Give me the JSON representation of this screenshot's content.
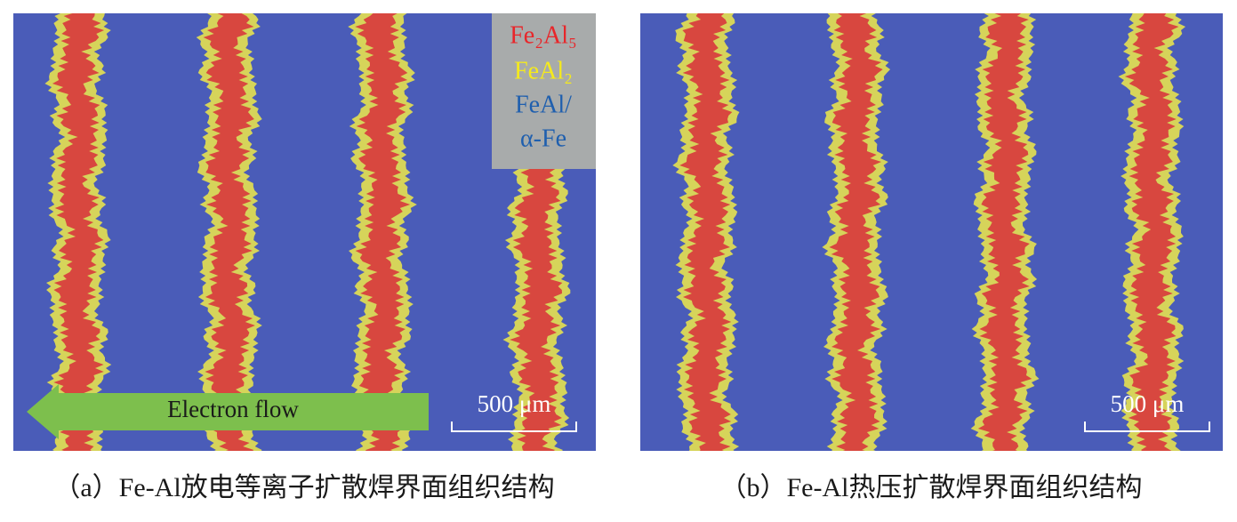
{
  "panels": [
    {
      "legend": [
        "Fe₂Al₅",
        "FeAl₂",
        "FeAl/",
        "α-Fe"
      ],
      "arrow_label": "Electron flow",
      "scale_bar": "500 μm",
      "caption": "（a）Fe-Al放电等离子扩散焊界面组织结构"
    },
    {
      "scale_bar": "500 μm",
      "caption": "（b）Fe-Al热压扩散焊界面组织结构"
    }
  ]
}
